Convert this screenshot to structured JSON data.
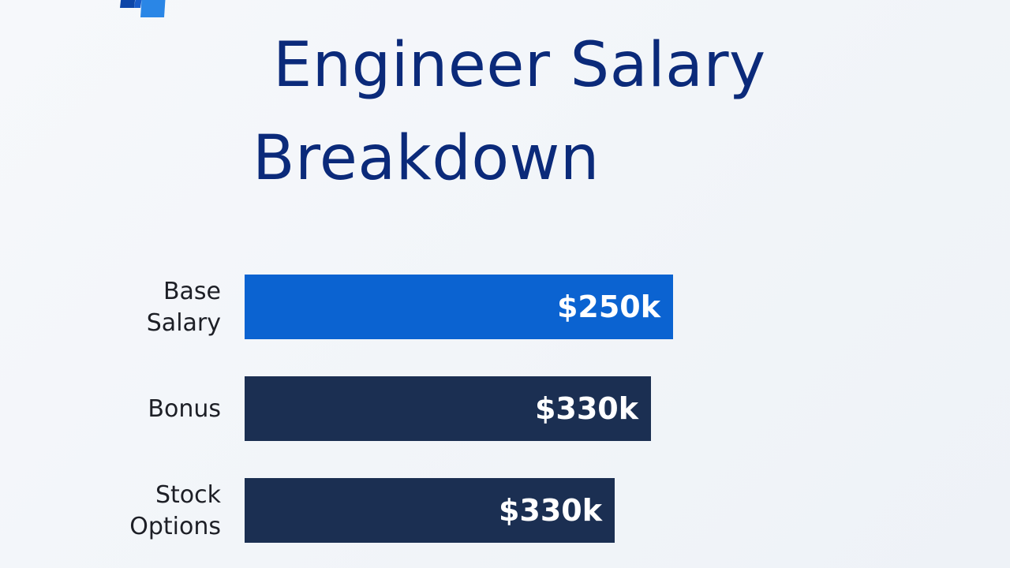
{
  "title_lines": [
    "Engineer Salary",
    "Breakdown"
  ],
  "colors": {
    "title": "#0b2a7a",
    "accent_bar": "#0b63d1",
    "bar": "#1b2f52",
    "logo_dark": "#0d46a8",
    "logo_light": "#2a86e6"
  },
  "chart_data": {
    "type": "bar",
    "orientation": "horizontal",
    "title": "Engineer Salary Breakdown",
    "categories": [
      [
        "Base",
        "Salary"
      ],
      [
        "Bonus"
      ],
      [
        "Stock",
        "Options"
      ]
    ],
    "values": [
      250,
      330,
      330
    ],
    "value_labels": [
      "$250k",
      "$330k",
      "$330k"
    ],
    "bar_colors": [
      "#0b63d1",
      "#1b2f52",
      "#1b2f52"
    ],
    "xlabel": "",
    "ylabel": "",
    "grid": false,
    "legend": "none"
  }
}
